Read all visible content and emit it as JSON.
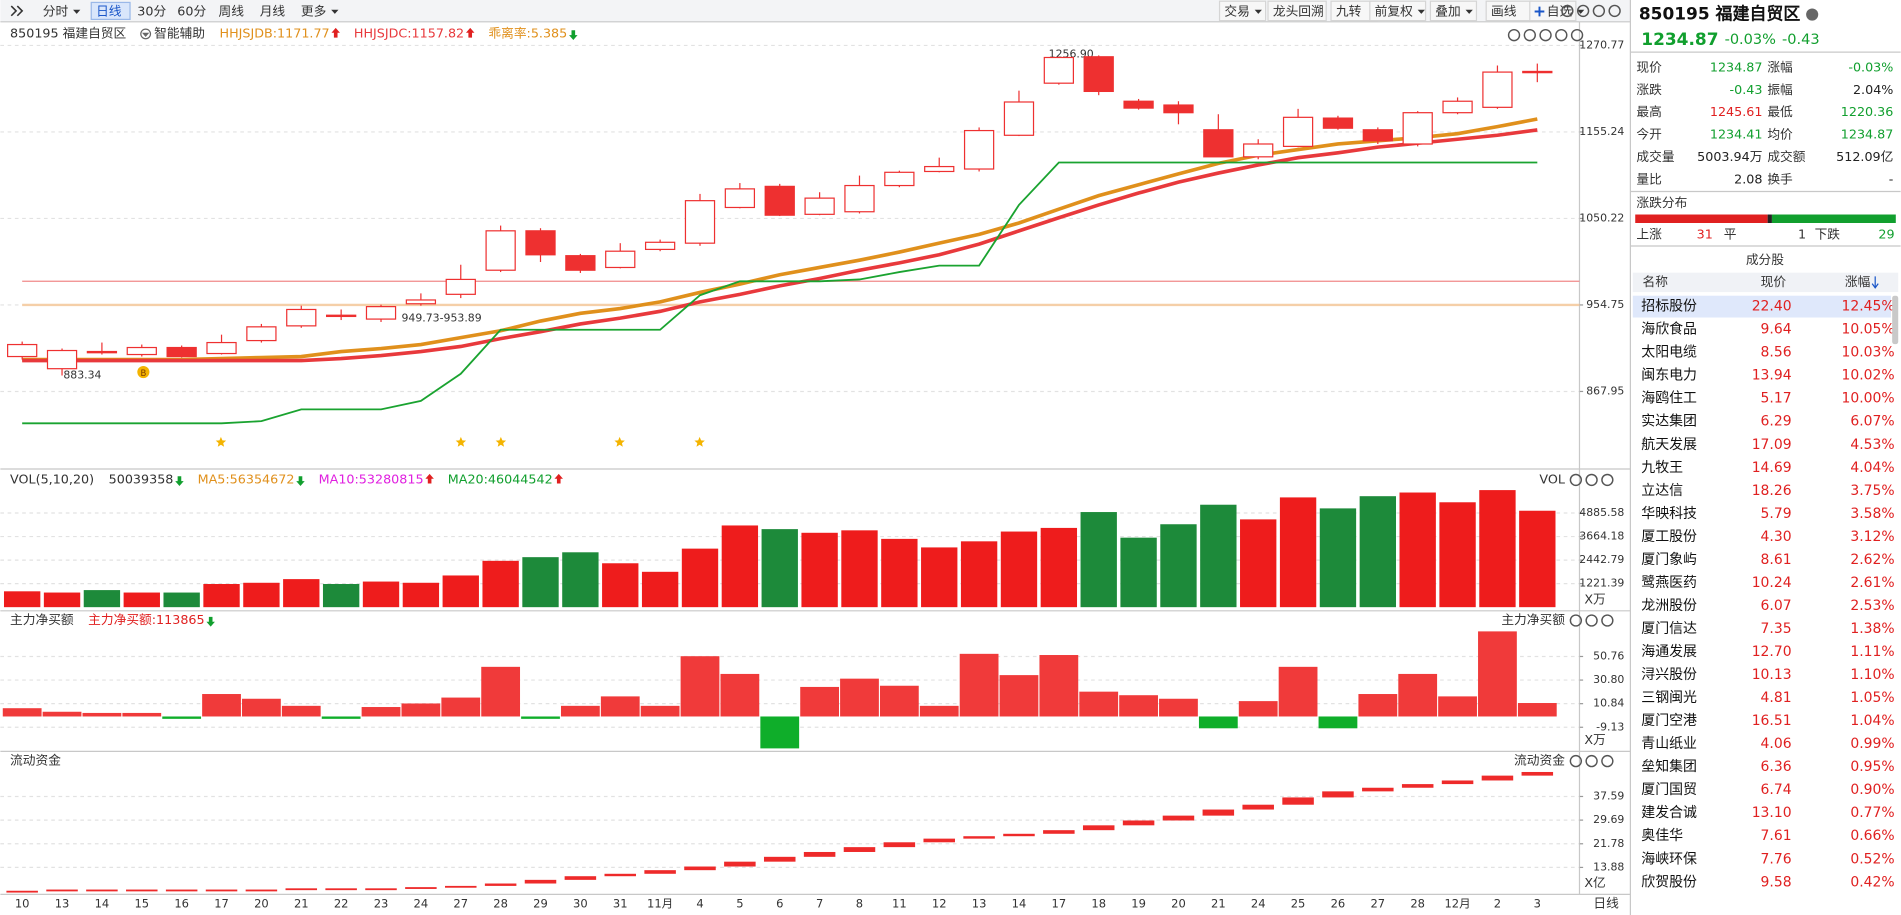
{
  "toolbar": {
    "left": [
      "分时",
      "日线",
      "30分",
      "60分",
      "周线",
      "月线",
      "更多"
    ],
    "right": [
      "交易",
      "龙头回溯",
      "九转",
      "前复权",
      "叠加",
      "画线",
      "自选"
    ]
  },
  "chart_data": {
    "type": "candlestick",
    "log_scale": true,
    "header": [
      {
        "text": "850195 福建自贸区",
        "color": "#333333"
      },
      {
        "text": "智能辅助",
        "color": "#333333"
      },
      {
        "text": "HHJSJDB:1171.77",
        "color": "#e0901c",
        "arrow": "up"
      },
      {
        "text": "HHJSJDC:1157.82",
        "color": "#e8393c",
        "arrow": "up"
      },
      {
        "text": "乖离率:5.385",
        "color": "#e0901c",
        "arrow": "down"
      }
    ],
    "annotations": [
      "1256.90",
      "883.34",
      "949.73-953.89"
    ],
    "marker": "B",
    "categories": [
      "10",
      "13",
      "14",
      "15",
      "16",
      "17",
      "20",
      "21",
      "22",
      "23",
      "24",
      "27",
      "28",
      "29",
      "30",
      "31",
      "11月",
      "4",
      "5",
      "6",
      "7",
      "8",
      "11",
      "12",
      "13",
      "14",
      "17",
      "18",
      "19",
      "20",
      "21",
      "24",
      "25",
      "26",
      "27",
      "28",
      "12月",
      "2",
      "3"
    ],
    "open": [
      902,
      890,
      907,
      904,
      911,
      905,
      918,
      933,
      944,
      940,
      956,
      966,
      992,
      1036,
      1008,
      995,
      1015,
      1022,
      1063,
      1088,
      1055,
      1058,
      1089,
      1106,
      1109,
      1151,
      1219,
      1255,
      1195,
      1190,
      1158,
      1124,
      1137,
      1173,
      1158,
      1140,
      1180,
      1187,
      1234.41
    ],
    "high": [
      917,
      910,
      916,
      914,
      913,
      924,
      935,
      954,
      950,
      955,
      967,
      998,
      1042,
      1039,
      1010,
      1022,
      1026,
      1079,
      1092,
      1091,
      1081,
      1101,
      1107,
      1123,
      1161,
      1209,
      1255,
      1256.9,
      1198,
      1195,
      1178,
      1146,
      1185,
      1176,
      1161,
      1182,
      1200,
      1243,
      1245.61
    ],
    "low": [
      899,
      883.34,
      904,
      902,
      901,
      904,
      916,
      931,
      939,
      937,
      954,
      962,
      990,
      1001,
      989,
      994,
      1013,
      1019,
      1062,
      1053,
      1054,
      1056,
      1087,
      1105,
      1106,
      1150,
      1217,
      1203,
      1184,
      1165,
      1124,
      1121,
      1136,
      1158,
      1140,
      1137,
      1178,
      1185,
      1220.36
    ],
    "close": [
      914,
      908,
      907,
      911,
      902,
      916,
      932,
      950,
      944,
      953,
      960,
      982,
      1036,
      1009,
      992,
      1013,
      1023,
      1071,
      1085,
      1054,
      1074,
      1089,
      1105,
      1112,
      1157,
      1194,
      1254,
      1208,
      1186,
      1180,
      1124,
      1140,
      1174,
      1160,
      1144,
      1180,
      1195,
      1234,
      1234.87
    ],
    "up_color": "#ee3030",
    "down_color": "#ee3030",
    "lines": [
      {
        "name": "HHJSJDB",
        "color": "#e0901c",
        "width": 3,
        "values": [
          899,
          899,
          899,
          899,
          899,
          900,
          901,
          902,
          907,
          910,
          914,
          921,
          928,
          938,
          946,
          951,
          958,
          968,
          977,
          987,
          995,
          1003,
          1012,
          1022,
          1032,
          1045,
          1061,
          1077,
          1090,
          1103,
          1116,
          1126,
          1133,
          1140,
          1144,
          1148,
          1153,
          1162,
          1171.77
        ]
      },
      {
        "name": "HHJSJDC",
        "color": "#e8393c",
        "width": 3,
        "values": [
          898,
          898,
          898,
          898,
          898,
          898,
          898,
          898,
          900,
          903,
          907,
          912,
          920,
          927,
          935,
          941,
          948,
          958,
          966,
          975,
          983,
          992,
          1000,
          1009,
          1021,
          1036,
          1051,
          1066,
          1080,
          1093,
          1104,
          1114,
          1123,
          1129,
          1136,
          1141,
          1146,
          1151,
          1157.82
        ]
      },
      {
        "color": "#1aa330",
        "width": 1.5,
        "values": [
          838,
          838,
          838,
          838,
          838,
          838,
          840,
          851,
          851,
          851,
          859,
          885,
          929,
          929,
          929,
          929,
          929,
          965,
          980,
          980,
          980,
          982,
          990,
          997,
          997,
          1066,
          1117,
          1117,
          1117,
          1117,
          1117,
          1117,
          1117,
          1117,
          1117,
          1117,
          1117,
          1117,
          1117
        ]
      }
    ],
    "levels": [
      {
        "value": 980,
        "color": "#f08a8a"
      },
      {
        "value": 954.75,
        "color": "#f5cfa8"
      }
    ],
    "ylim": [
      799,
      1275
    ],
    "yticks": [
      1270.77,
      1155.24,
      1050.22,
      954.75,
      867.95
    ],
    "grid": true,
    "volume": {
      "header": [
        {
          "text": "VOL(5,10,20)",
          "color": "#333333"
        },
        {
          "text": "50039358",
          "color": "#333333",
          "arrow": "down"
        },
        {
          "text": "MA5:56354672",
          "color": "#e0901c",
          "arrow": "down"
        },
        {
          "text": "MA10:53280815",
          "color": "#e020e0",
          "arrow": "up"
        },
        {
          "text": "MA20:46044542",
          "color": "#119f2e",
          "arrow": "up"
        }
      ],
      "title": "VOL",
      "unit": "X万",
      "values": [
        823,
        759,
        886,
        759,
        759,
        1202,
        1266,
        1456,
        1202,
        1329,
        1266,
        1645,
        2405,
        2595,
        2848,
        2278,
        1835,
        3038,
        4240,
        4050,
        3860,
        3987,
        3544,
        3101,
        3417,
        3924,
        4113,
        4936,
        3607,
        4303,
        5316,
        4556,
        5696,
        5126,
        5759,
        5949,
        5443,
        6075,
        5003.94
      ],
      "up_color": "#ee1c1c",
      "down_color": "#1d8a3a",
      "ylim": [
        0,
        6100
      ],
      "yticks": [
        4885.58,
        3664.18,
        2442.79,
        1221.39
      ]
    },
    "net": {
      "header": [
        {
          "text": "主力净买额",
          "color": "#333333"
        },
        {
          "text": "主力净买额:113865",
          "color": "#e02020",
          "arrow": "down"
        }
      ],
      "title": "主力净买额",
      "unit": "X万",
      "values": [
        7,
        4,
        3,
        3,
        -2,
        19,
        15,
        9,
        -2,
        8,
        11,
        16,
        42,
        -2,
        9,
        17,
        9,
        51,
        36,
        -27,
        25,
        32,
        26,
        9,
        53,
        35,
        52,
        21,
        18,
        15,
        -10,
        13,
        42,
        -10,
        19,
        36,
        17,
        72,
        11.39
      ],
      "up_color": "#f03a3a",
      "down_color": "#0fae2a",
      "ylim": [
        -28,
        73
      ],
      "yticks": [
        50.76,
        {
          "value": 30.8,
          "label": "30.80"
        },
        10.84,
        -9.13
      ]
    },
    "liquid": {
      "header": [
        {
          "text": "流动资金",
          "color": "#333333"
        }
      ],
      "title": "流动资金",
      "unit": "X亿",
      "values": [
        6.08,
        6.48,
        6.48,
        6.48,
        6.48,
        6.48,
        6.48,
        6.89,
        6.89,
        6.89,
        7.29,
        7.7,
        8.5,
        9.72,
        10.94,
        11.75,
        12.96,
        14.18,
        15.8,
        17.42,
        19.04,
        20.66,
        22.28,
        23.5,
        24.31,
        25.12,
        26.33,
        27.95,
        29.57,
        31.19,
        33.22,
        34.84,
        37.27,
        39.3,
        40.51,
        41.73,
        42.94,
        44.56,
        45.78
      ],
      "color": "#ee2a2a",
      "ylim": [
        0,
        47.8
      ],
      "yticks": [
        37.59,
        29.69,
        21.78,
        13.88
      ]
    },
    "period": "日线"
  },
  "panel": {
    "title": "850195 福建自贸区",
    "price": "1234.87",
    "change_pct": "-0.03%",
    "change": "-0.43",
    "quote": [
      {
        "label": "现价",
        "value": "1234.87",
        "color": "#119f2e"
      },
      {
        "label": "涨幅",
        "value": "-0.03%",
        "color": "#119f2e"
      },
      {
        "label": "涨跌",
        "value": "-0.43",
        "color": "#119f2e"
      },
      {
        "label": "振幅",
        "value": "2.04%",
        "color": "#222222"
      },
      {
        "label": "最高",
        "value": "1245.61",
        "color": "#e02020"
      },
      {
        "label": "最低",
        "value": "1220.36",
        "color": "#119f2e"
      },
      {
        "label": "今开",
        "value": "1234.41",
        "color": "#119f2e"
      },
      {
        "label": "均价",
        "value": "1234.87",
        "color": "#119f2e"
      },
      {
        "label": "成交量",
        "value": "5003.94万",
        "color": "#222222"
      },
      {
        "label": "成交额",
        "value": "512.09亿",
        "color": "#222222"
      },
      {
        "label": "量比",
        "value": "2.08",
        "color": "#222222"
      },
      {
        "label": "换手",
        "value": "-",
        "color": "#222222"
      }
    ],
    "distribution": {
      "title": "涨跌分布",
      "up_label": "上涨",
      "up": 31,
      "flat_label": "平",
      "flat": 1,
      "down_label": "下跌",
      "down": 29
    },
    "constituents": {
      "title": "成分股",
      "columns": [
        "名称",
        "现价",
        "涨幅"
      ],
      "rows": [
        [
          "招标股份",
          "22.40",
          "12.45%"
        ],
        [
          "海欣食品",
          "9.64",
          "10.05%"
        ],
        [
          "太阳电缆",
          "8.56",
          "10.03%"
        ],
        [
          "闽东电力",
          "13.94",
          "10.02%"
        ],
        [
          "海鸥住工",
          "5.17",
          "10.00%"
        ],
        [
          "实达集团",
          "6.29",
          "6.07%"
        ],
        [
          "航天发展",
          "17.09",
          "4.53%"
        ],
        [
          "九牧王",
          "14.69",
          "4.04%"
        ],
        [
          "立达信",
          "18.26",
          "3.75%"
        ],
        [
          "华映科技",
          "5.79",
          "3.58%"
        ],
        [
          "厦工股份",
          "4.30",
          "3.12%"
        ],
        [
          "厦门象屿",
          "8.61",
          "2.62%"
        ],
        [
          "鹭燕医药",
          "10.24",
          "2.61%"
        ],
        [
          "龙洲股份",
          "6.07",
          "2.53%"
        ],
        [
          "厦门信达",
          "7.35",
          "1.38%"
        ],
        [
          "海通发展",
          "12.70",
          "1.11%"
        ],
        [
          "浔兴股份",
          "10.13",
          "1.10%"
        ],
        [
          "三钢闽光",
          "4.81",
          "1.05%"
        ],
        [
          "厦门空港",
          "16.51",
          "1.04%"
        ],
        [
          "青山纸业",
          "4.06",
          "0.99%"
        ],
        [
          "垒知集团",
          "6.36",
          "0.95%"
        ],
        [
          "厦门国贸",
          "6.74",
          "0.90%"
        ],
        [
          "建发合诚",
          "13.10",
          "0.77%"
        ],
        [
          "奥佳华",
          "7.61",
          "0.66%"
        ],
        [
          "海峡环保",
          "7.76",
          "0.52%"
        ],
        [
          "欣贺股份",
          "9.58",
          "0.42%"
        ]
      ]
    }
  }
}
